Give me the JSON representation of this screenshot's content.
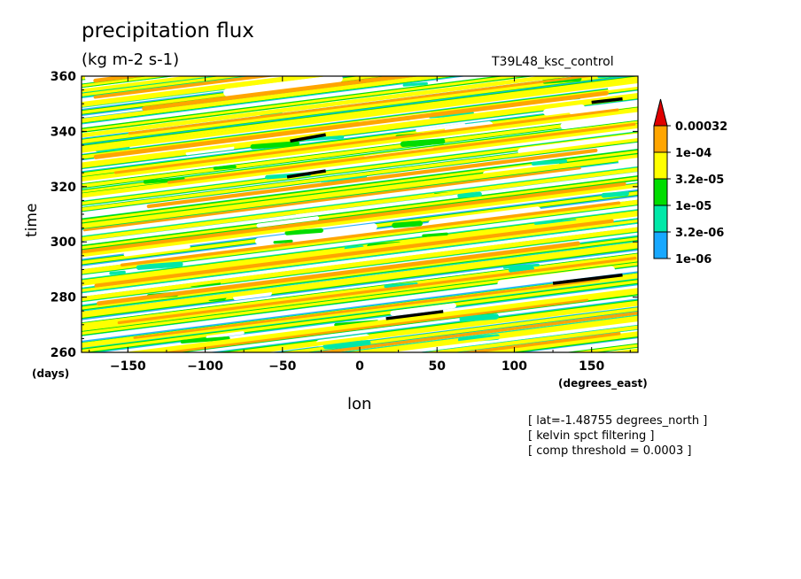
{
  "chart_data": {
    "type": "heatmap",
    "title": "precipitation flux",
    "units": "(kg m-2 s-1)",
    "dataset": "T39L48_ksc_control",
    "xlabel": "lon",
    "ylabel": "time",
    "x_unit": "(degrees_east)",
    "y_unit": "(days)",
    "xlim": [
      -180,
      180
    ],
    "ylim": [
      260,
      360
    ],
    "xticks": [
      -150,
      -100,
      -50,
      0,
      50,
      100,
      150
    ],
    "yticks": [
      260,
      280,
      300,
      320,
      340,
      360
    ],
    "colorbar": {
      "levels": [
        "0.00032",
        "1e-04",
        "3.2e-05",
        "1e-05",
        "3.2e-06",
        "1e-06"
      ],
      "colors": [
        "#e00000",
        "#ffa500",
        "#ffff00",
        "#00dd00",
        "#00e8a8",
        "#18a8ff"
      ]
    },
    "composite_segments": [
      {
        "lon": [
          -45,
          -22
        ],
        "time": [
          336.5,
          338.8
        ]
      },
      {
        "lon": [
          -47,
          -22
        ],
        "time": [
          323.5,
          325.7
        ]
      },
      {
        "lon": [
          17,
          54
        ],
        "time": [
          272.2,
          274.8
        ]
      },
      {
        "lon": [
          125,
          170
        ],
        "time": [
          285,
          288
        ]
      },
      {
        "lon": [
          150,
          170
        ],
        "time": [
          350.5,
          351.8
        ]
      }
    ],
    "notes": [
      "[ lat=-1.48755 degrees_north ]",
      "[ kelvin spct filtering ]",
      "[ comp threshold = 0.0003 ]"
    ]
  }
}
